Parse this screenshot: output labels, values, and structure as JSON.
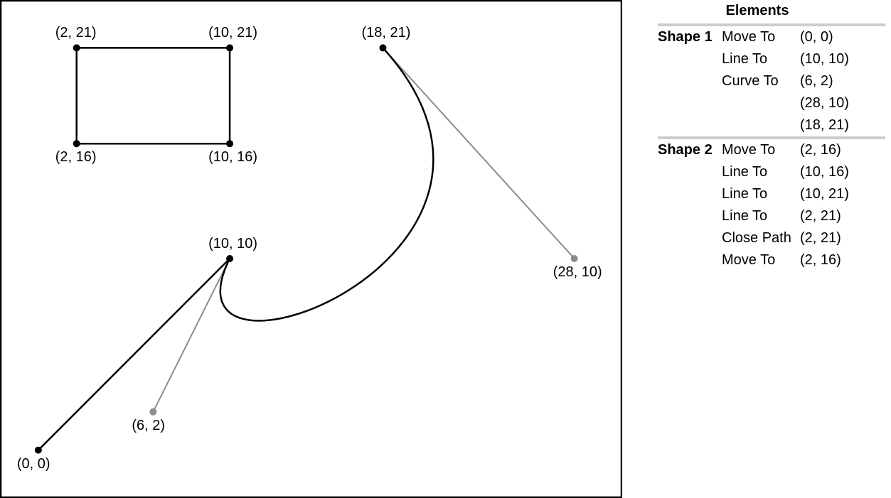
{
  "canvas": {
    "border_color": "#000000",
    "border_width": 2.5,
    "background_color": "#ffffff",
    "path_color": "#000000",
    "path_width": 2.5,
    "control_line_color": "#8c8c8c",
    "control_line_width": 2,
    "anchor_point_color": "#000000",
    "control_point_color": "#8c8c8c",
    "point_radius": 5,
    "label_fontsize": 20,
    "domain": {
      "xmin": -2,
      "xmax": 30.5,
      "ymin": -2.5,
      "ymax": 23.5
    },
    "shapes": [
      {
        "name": "Shape 1",
        "segments": [
          {
            "type": "MoveTo",
            "to": [
              0,
              0
            ]
          },
          {
            "type": "LineTo",
            "to": [
              10,
              10
            ]
          },
          {
            "type": "CurveTo",
            "c1": [
              6,
              2
            ],
            "c2": [
              28,
              10
            ],
            "to": [
              18,
              21
            ]
          }
        ]
      },
      {
        "name": "Shape 2",
        "segments": [
          {
            "type": "MoveTo",
            "to": [
              2,
              16
            ]
          },
          {
            "type": "LineTo",
            "to": [
              10,
              16
            ]
          },
          {
            "type": "LineTo",
            "to": [
              10,
              21
            ]
          },
          {
            "type": "LineTo",
            "to": [
              2,
              21
            ]
          },
          {
            "type": "ClosePath"
          }
        ]
      }
    ],
    "anchor_points": [
      {
        "xy": [
          0,
          0
        ],
        "label": "(0, 0)",
        "label_pos": "below"
      },
      {
        "xy": [
          10,
          10
        ],
        "label": "(10, 10)",
        "label_pos": "above"
      },
      {
        "xy": [
          18,
          21
        ],
        "label": "(18, 21)",
        "label_pos": "above"
      },
      {
        "xy": [
          2,
          16
        ],
        "label": "(2, 16)",
        "label_pos": "below"
      },
      {
        "xy": [
          10,
          16
        ],
        "label": "(10, 16)",
        "label_pos": "below"
      },
      {
        "xy": [
          10,
          21
        ],
        "label": "(10, 21)",
        "label_pos": "above"
      },
      {
        "xy": [
          2,
          21
        ],
        "label": "(2, 21)",
        "label_pos": "above"
      }
    ],
    "control_points": [
      {
        "xy": [
          6,
          2
        ],
        "label": "(6, 2)",
        "label_pos": "below"
      },
      {
        "xy": [
          28,
          10
        ],
        "label": "(28, 10)",
        "label_pos": "below"
      }
    ],
    "control_lines": [
      {
        "from": [
          10,
          10
        ],
        "to": [
          6,
          2
        ]
      },
      {
        "from": [
          18,
          21
        ],
        "to": [
          28,
          10
        ]
      }
    ]
  },
  "sidebar": {
    "title": "Elements",
    "rule_color": "#cccccc",
    "shapes": [
      {
        "name": "Shape 1",
        "rows": [
          {
            "op": "Move To",
            "coord": "(0, 0)"
          },
          {
            "op": "Line To",
            "coord": "(10, 10)"
          },
          {
            "op": "Curve To",
            "coord": "(6, 2)"
          },
          {
            "op": "",
            "coord": "(28, 10)"
          },
          {
            "op": "",
            "coord": "(18, 21)"
          }
        ]
      },
      {
        "name": "Shape 2",
        "rows": [
          {
            "op": "Move To",
            "coord": "(2, 16)"
          },
          {
            "op": "Line To",
            "coord": "(10, 16)"
          },
          {
            "op": "Line To",
            "coord": "(10, 21)"
          },
          {
            "op": "Line To",
            "coord": "(2, 21)"
          },
          {
            "op": "Close Path",
            "coord": "(2, 21)"
          },
          {
            "op": "Move To",
            "coord": "(2, 16)"
          }
        ]
      }
    ]
  }
}
